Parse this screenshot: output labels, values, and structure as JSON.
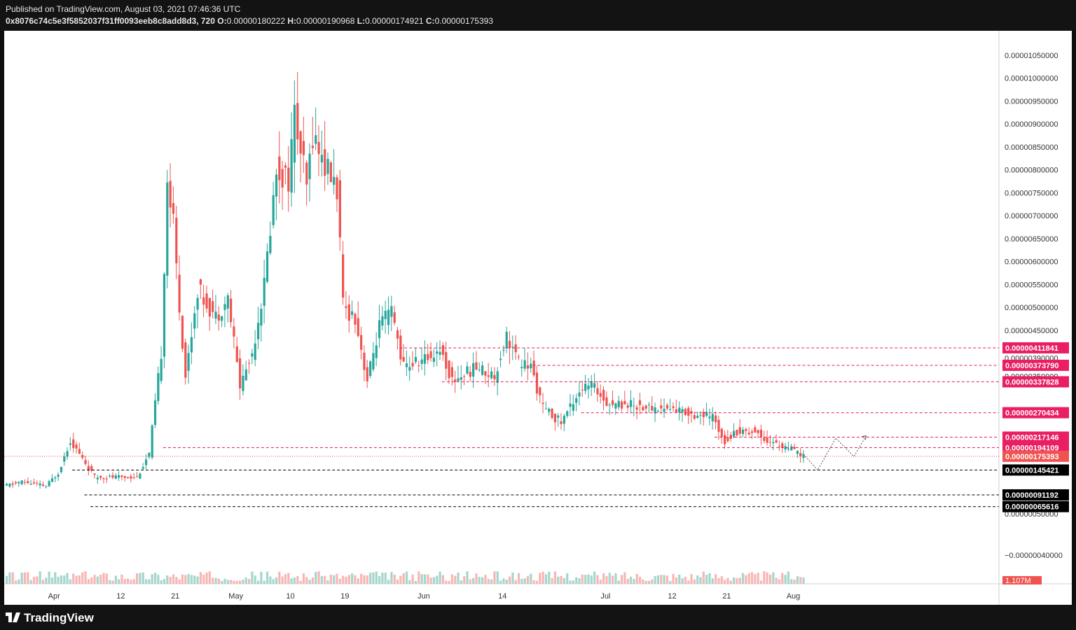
{
  "header": {
    "published": "Published on TradingView.com, August 03, 2021 07:46:36 UTC",
    "symbol": "0x8076c74c5e3f5852037f31ff0093eeb8c8add8d3, 720",
    "o_label": "O:",
    "o_value": "0.00000180222",
    "h_label": "H:",
    "h_value": "0.00000190968",
    "l_label": "L:",
    "l_value": "0.00000174921",
    "c_label": "C:",
    "c_value": "0.00000175393"
  },
  "footer": {
    "brand": "TradingView"
  },
  "colors": {
    "up": "#26a69a",
    "down": "#ef5350",
    "res": "#e91e63",
    "sup": "#000000",
    "vol_up": "#a5d6cc",
    "vol_down": "#f7b6b4"
  },
  "chart_data": {
    "type": "candlestick",
    "interval": "720",
    "y_ticks": [
      "0.00001050000",
      "0.00001000000",
      "0.00000950000",
      "0.00000900000",
      "0.00000850000",
      "0.00000800000",
      "0.00000750000",
      "0.00000700000",
      "0.00000650000",
      "0.00000600000",
      "0.00000550000",
      "0.00000500000",
      "0.00000450000",
      "0.00000390000",
      "0.00000350000",
      "0.00000050000",
      "−0.00000040000"
    ],
    "x_ticks": [
      "Apr",
      "12",
      "21",
      "May",
      "10",
      "19",
      "Jun",
      "14",
      "Jul",
      "12",
      "21",
      "Aug"
    ],
    "ylim": [
      -6e-07,
      1.08e-05
    ],
    "last_price": "0.00000175393",
    "volume_label": "1.107M",
    "resistance_levels": [
      "0.00000411841",
      "0.00000373790",
      "0.00000337828",
      "0.00000270434",
      "0.00000217146",
      "0.00000194109"
    ],
    "support_levels": [
      "0.00000145421",
      "0.00000091192",
      "0.00000065616"
    ],
    "projection_path": [
      {
        "date": "2021-08-03",
        "price": 1.75e-06
      },
      {
        "date": "2021-08-05",
        "price": 1.45e-06
      },
      {
        "date": "2021-08-08",
        "price": 2.15e-06
      },
      {
        "date": "2021-08-11",
        "price": 1.75e-06
      },
      {
        "date": "2021-08-13",
        "price": 2.2e-06
      }
    ],
    "daily": [
      {
        "d": "2021-03-24",
        "close": 1.1e-06
      },
      {
        "d": "2021-03-27",
        "close": 1.2e-06
      },
      {
        "d": "2021-03-31",
        "close": 1.1e-06
      },
      {
        "d": "2021-04-02",
        "close": 1.4e-06
      },
      {
        "d": "2021-04-04",
        "close": 2.1e-06
      },
      {
        "d": "2021-04-06",
        "close": 1.7e-06
      },
      {
        "d": "2021-04-08",
        "close": 1.3e-06
      },
      {
        "d": "2021-04-12",
        "close": 1.3e-06
      },
      {
        "d": "2021-04-15",
        "close": 1.3e-06
      },
      {
        "d": "2021-04-17",
        "close": 1.8e-06
      },
      {
        "d": "2021-04-19",
        "close": 4e-06
      },
      {
        "d": "2021-04-20",
        "close": 7.8e-06
      },
      {
        "d": "2021-04-21",
        "close": 6.8e-06
      },
      {
        "d": "2021-04-22",
        "close": 5e-06
      },
      {
        "d": "2021-04-23",
        "close": 3.5e-06
      },
      {
        "d": "2021-04-25",
        "close": 5.4e-06
      },
      {
        "d": "2021-04-28",
        "close": 4.8e-06
      },
      {
        "d": "2021-04-30",
        "close": 5.2e-06
      },
      {
        "d": "2021-05-02",
        "close": 3.3e-06
      },
      {
        "d": "2021-05-04",
        "close": 4e-06
      },
      {
        "d": "2021-05-06",
        "close": 5.5e-06
      },
      {
        "d": "2021-05-08",
        "close": 8e-06
      },
      {
        "d": "2021-05-10",
        "close": 7.8e-06
      },
      {
        "d": "2021-05-11",
        "close": 9.2e-06
      },
      {
        "d": "2021-05-13",
        "close": 7.6e-06
      },
      {
        "d": "2021-05-14",
        "close": 8.8e-06
      },
      {
        "d": "2021-05-16",
        "close": 8.1e-06
      },
      {
        "d": "2021-05-18",
        "close": 7.6e-06
      },
      {
        "d": "2021-05-19",
        "close": 5e-06
      },
      {
        "d": "2021-05-21",
        "close": 4.8e-06
      },
      {
        "d": "2021-05-23",
        "close": 3.4e-06
      },
      {
        "d": "2021-05-25",
        "close": 4.6e-06
      },
      {
        "d": "2021-05-27",
        "close": 4.9e-06
      },
      {
        "d": "2021-05-29",
        "close": 3.7e-06
      },
      {
        "d": "2021-06-02",
        "close": 3.9e-06
      },
      {
        "d": "2021-06-04",
        "close": 4.1e-06
      },
      {
        "d": "2021-06-06",
        "close": 3.4e-06
      },
      {
        "d": "2021-06-10",
        "close": 3.7e-06
      },
      {
        "d": "2021-06-13",
        "close": 3.5e-06
      },
      {
        "d": "2021-06-15",
        "close": 4.4e-06
      },
      {
        "d": "2021-06-17",
        "close": 3.8e-06
      },
      {
        "d": "2021-06-19",
        "close": 3.7e-06
      },
      {
        "d": "2021-06-21",
        "close": 2.8e-06
      },
      {
        "d": "2021-06-24",
        "close": 2.5e-06
      },
      {
        "d": "2021-06-27",
        "close": 3.2e-06
      },
      {
        "d": "2021-06-29",
        "close": 3.3e-06
      },
      {
        "d": "2021-07-02",
        "close": 2.9e-06
      },
      {
        "d": "2021-07-05",
        "close": 2.9e-06
      },
      {
        "d": "2021-07-09",
        "close": 2.8e-06
      },
      {
        "d": "2021-07-12",
        "close": 2.8e-06
      },
      {
        "d": "2021-07-15",
        "close": 2.7e-06
      },
      {
        "d": "2021-07-19",
        "close": 2.6e-06
      },
      {
        "d": "2021-07-21",
        "close": 2.1e-06
      },
      {
        "d": "2021-07-23",
        "close": 2.3e-06
      },
      {
        "d": "2021-07-26",
        "close": 2.3e-06
      },
      {
        "d": "2021-07-28",
        "close": 2.1e-06
      },
      {
        "d": "2021-07-30",
        "close": 2e-06
      },
      {
        "d": "2021-08-01",
        "close": 1.9e-06
      },
      {
        "d": "2021-08-03",
        "close": 1.75e-06
      }
    ]
  }
}
